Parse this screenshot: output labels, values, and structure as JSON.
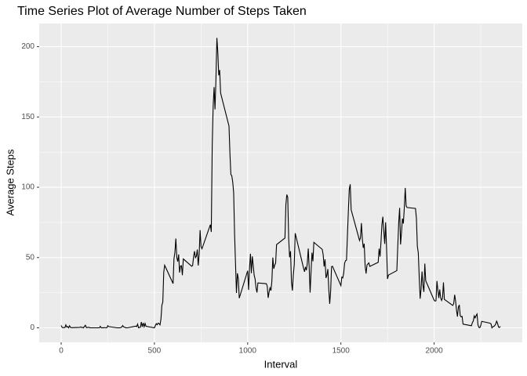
{
  "chart_data": {
    "type": "line",
    "title": "Time Series Plot of Average Number of Steps Taken",
    "xlabel": "Interval",
    "ylabel": "Average Steps",
    "x": [
      0,
      5,
      10,
      15,
      20,
      25,
      30,
      35,
      40,
      45,
      50,
      55,
      100,
      105,
      110,
      115,
      120,
      125,
      130,
      135,
      140,
      145,
      150,
      155,
      200,
      205,
      210,
      215,
      220,
      225,
      230,
      235,
      240,
      245,
      250,
      255,
      300,
      305,
      310,
      315,
      320,
      325,
      330,
      335,
      340,
      345,
      350,
      355,
      400,
      405,
      410,
      415,
      420,
      425,
      430,
      435,
      440,
      445,
      450,
      455,
      500,
      505,
      510,
      515,
      520,
      525,
      530,
      535,
      540,
      545,
      550,
      555,
      600,
      605,
      610,
      615,
      620,
      625,
      630,
      635,
      640,
      645,
      650,
      655,
      700,
      705,
      710,
      715,
      720,
      725,
      730,
      735,
      740,
      745,
      750,
      755,
      800,
      805,
      810,
      815,
      820,
      825,
      830,
      835,
      840,
      845,
      850,
      855,
      900,
      905,
      910,
      915,
      920,
      925,
      930,
      935,
      940,
      945,
      950,
      955,
      1000,
      1005,
      1010,
      1015,
      1020,
      1025,
      1030,
      1035,
      1040,
      1045,
      1050,
      1055,
      1100,
      1105,
      1110,
      1115,
      1120,
      1125,
      1130,
      1135,
      1140,
      1145,
      1150,
      1155,
      1200,
      1205,
      1210,
      1215,
      1220,
      1225,
      1230,
      1235,
      1240,
      1245,
      1250,
      1255,
      1300,
      1305,
      1310,
      1315,
      1320,
      1325,
      1330,
      1335,
      1340,
      1345,
      1350,
      1355,
      1400,
      1405,
      1410,
      1415,
      1420,
      1425,
      1430,
      1435,
      1440,
      1445,
      1450,
      1455,
      1500,
      1505,
      1510,
      1515,
      1520,
      1525,
      1530,
      1535,
      1540,
      1545,
      1550,
      1555,
      1600,
      1605,
      1610,
      1615,
      1620,
      1625,
      1630,
      1635,
      1640,
      1645,
      1650,
      1655,
      1700,
      1705,
      1710,
      1715,
      1720,
      1725,
      1730,
      1735,
      1740,
      1745,
      1750,
      1755,
      1800,
      1805,
      1810,
      1815,
      1820,
      1825,
      1830,
      1835,
      1840,
      1845,
      1850,
      1855,
      1900,
      1905,
      1910,
      1915,
      1920,
      1925,
      1930,
      1935,
      1940,
      1945,
      1950,
      1955,
      2000,
      2005,
      2010,
      2015,
      2020,
      2025,
      2030,
      2035,
      2040,
      2045,
      2050,
      2055,
      2100,
      2105,
      2110,
      2115,
      2120,
      2125,
      2130,
      2135,
      2140,
      2145,
      2150,
      2155,
      2200,
      2205,
      2210,
      2215,
      2220,
      2225,
      2230,
      2235,
      2240,
      2245,
      2250,
      2255,
      2300,
      2305,
      2310,
      2315,
      2320,
      2325,
      2330,
      2335,
      2340,
      2345,
      2350,
      2355
    ],
    "series": [
      {
        "name": "Average Steps",
        "color": "#000000",
        "values": [
          1.7,
          0.3,
          0.1,
          0.2,
          0.1,
          2.1,
          0.5,
          0.9,
          0,
          1.5,
          0.3,
          0.1,
          0.3,
          0.7,
          0.2,
          0.3,
          0,
          1.1,
          1.8,
          0.2,
          0.2,
          0.4,
          0.3,
          0,
          0,
          0,
          1.1,
          0,
          0,
          0.1,
          0,
          0.2,
          0,
          0,
          1.5,
          0.9,
          0,
          0,
          0,
          0,
          0.2,
          0.6,
          1.6,
          0.6,
          0.5,
          0.1,
          0,
          0,
          1.2,
          0.9,
          2.6,
          0,
          0.3,
          0.4,
          4.1,
          0.7,
          3.5,
          0.8,
          3.1,
          1.1,
          0,
          1.6,
          3,
          2.2,
          3.3,
          3,
          2.1,
          6.1,
          16,
          18.3,
          39.5,
          44.5,
          31.5,
          49.3,
          53.8,
          63.5,
          50,
          47.1,
          52.2,
          39.3,
          44,
          44.2,
          37.4,
          49,
          43.8,
          44.4,
          50.5,
          54.5,
          49.9,
          51,
          55.7,
          44.3,
          52.3,
          69.5,
          57.8,
          56.2,
          73.4,
          68.2,
          129.4,
          157.5,
          171.2,
          155.4,
          177.3,
          206.2,
          195.9,
          179.6,
          183.4,
          167,
          143.5,
          124,
          109.1,
          108.1,
          103.7,
          96,
          66.2,
          45.2,
          24.8,
          38.8,
          35,
          21.1,
          40.6,
          27,
          42.4,
          52.7,
          38.9,
          50.8,
          44.3,
          37.4,
          34.7,
          28.3,
          25.1,
          31.9,
          31.4,
          29.7,
          21.3,
          25.5,
          28.4,
          26.5,
          33.4,
          50,
          42,
          44.6,
          46,
          59.2,
          63.9,
          87.7,
          94.8,
          92.8,
          63.4,
          50.2,
          54.5,
          32.4,
          26.5,
          37.7,
          45.1,
          67.3,
          42.3,
          39.9,
          43.3,
          41,
          46.2,
          56.4,
          42.8,
          25.1,
          40,
          53.5,
          47.3,
          60.8,
          55.8,
          52,
          43.6,
          48.7,
          35.5,
          37.5,
          41.8,
          27.5,
          17.1,
          26.1,
          43.6,
          43.8,
          30,
          36.1,
          35.5,
          38.8,
          46,
          47.8,
          48.1,
          65.3,
          82.9,
          98.7,
          102.1,
          84,
          62.1,
          64.1,
          74.5,
          63.2,
          56.9,
          59.8,
          43.9,
          38.6,
          44.7,
          45.5,
          46.2,
          43.7,
          46.6,
          56.3,
          50.7,
          61.2,
          73.4,
          79,
          68.9,
          59.7,
          75.1,
          56.5,
          34.8,
          37.5,
          40.7,
          58,
          74.7,
          85.3,
          59.3,
          67.8,
          77.7,
          74.2,
          85.3,
          99.5,
          86.6,
          85.6,
          84.9,
          77.8,
          58,
          53.4,
          36.3,
          20.7,
          27.4,
          40,
          30.2,
          25.5,
          45.7,
          33.5,
          19.6,
          19,
          19.3,
          33.3,
          26.8,
          21.2,
          27.3,
          21.3,
          19.5,
          21.3,
          32.3,
          20.2,
          15.9,
          17.2,
          23.5,
          19.2,
          12.5,
          8,
          14.7,
          16.3,
          8.7,
          7.8,
          8.1,
          2.6,
          1.5,
          3.7,
          4.8,
          8.5,
          7.1,
          8.7,
          9.8,
          2.2,
          0.3,
          0.1,
          1.6,
          4.6,
          3.3,
          2.8,
          0,
          0.8,
          1,
          1.6,
          2.6,
          4.7,
          3.3,
          0.6,
          0.2,
          1.1
        ]
      }
    ],
    "xlim": [
      -117.75,
      2472.75
    ],
    "ylim": [
      -10.31,
      216.48
    ],
    "xticks": [
      0,
      500,
      1000,
      1500,
      2000
    ],
    "yticks": [
      0,
      50,
      100,
      150,
      200
    ],
    "xminor": [
      250,
      750,
      1250,
      1750,
      2250
    ],
    "yminor": [
      25,
      75,
      125,
      175
    ],
    "grid": true
  }
}
